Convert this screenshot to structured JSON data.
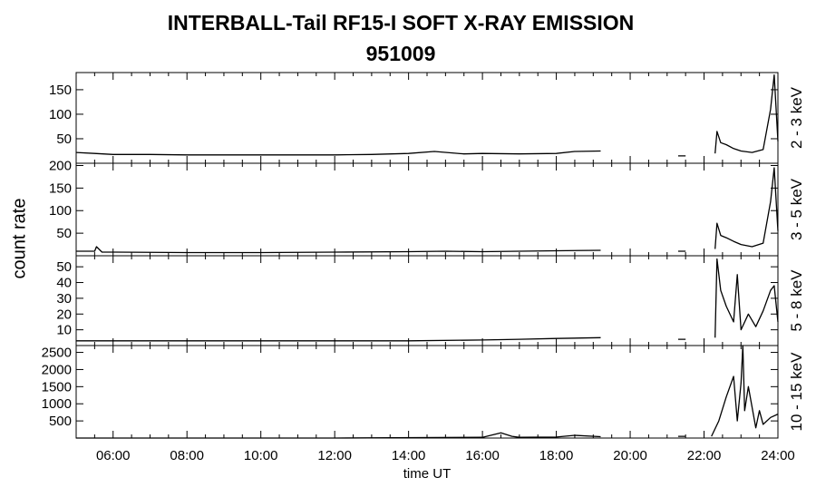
{
  "chart_data": {
    "type": "line",
    "title": "INTERBALL-Tail RF15-I SOFT X-RAY EMISSION",
    "subtitle": "951009",
    "xlabel": "time UT",
    "ylabel": "count rate",
    "xlim": [
      5.0,
      24.0
    ],
    "x_ticks": [
      {
        "value": 6,
        "label": "06:00"
      },
      {
        "value": 8,
        "label": "08:00"
      },
      {
        "value": 10,
        "label": "10:00"
      },
      {
        "value": 12,
        "label": "12:00"
      },
      {
        "value": 14,
        "label": "14:00"
      },
      {
        "value": 16,
        "label": "16:00"
      },
      {
        "value": 18,
        "label": "18:00"
      },
      {
        "value": 20,
        "label": "20:00"
      },
      {
        "value": 22,
        "label": "22:00"
      },
      {
        "value": 24,
        "label": "24:00"
      }
    ],
    "grid": false,
    "panels": [
      {
        "name": "2 - 3 keV",
        "ylim": [
          0,
          185
        ],
        "yticks": [
          50,
          100,
          150
        ],
        "series": {
          "x": [
            5.0,
            5.5,
            6.0,
            7.0,
            8.0,
            9.0,
            10.0,
            11.0,
            12.0,
            13.0,
            14.0,
            14.7,
            15.5,
            16.0,
            17.0,
            18.0,
            18.5,
            19.2,
            null,
            21.3,
            21.5,
            null,
            22.3,
            22.35,
            22.45,
            22.6,
            22.8,
            23.0,
            23.3,
            23.6,
            23.8,
            23.9,
            24.0
          ],
          "y": [
            22,
            20,
            18,
            18,
            17,
            17,
            17,
            17,
            17,
            18,
            20,
            24,
            19,
            20,
            19,
            20,
            24,
            25,
            null,
            15,
            15,
            null,
            20,
            65,
            42,
            38,
            30,
            25,
            22,
            28,
            110,
            180,
            45
          ]
        }
      },
      {
        "name": "3 - 5 keV",
        "ylim": [
          0,
          205
        ],
        "yticks": [
          50,
          100,
          150,
          200
        ],
        "series": {
          "x": [
            5.0,
            5.5,
            5.55,
            5.7,
            6.0,
            8.0,
            10.0,
            12.0,
            14.0,
            15.0,
            16.0,
            18.0,
            19.2,
            null,
            21.3,
            21.5,
            null,
            22.3,
            22.35,
            22.45,
            22.6,
            22.8,
            23.0,
            23.3,
            23.6,
            23.8,
            23.9,
            24.0
          ],
          "y": [
            10,
            10,
            20,
            8,
            8,
            7,
            7,
            8,
            9,
            10,
            9,
            11,
            12,
            null,
            10,
            10,
            null,
            15,
            72,
            45,
            40,
            32,
            25,
            20,
            28,
            120,
            195,
            55
          ]
        }
      },
      {
        "name": "5 - 8 keV",
        "ylim": [
          0,
          57
        ],
        "yticks": [
          10,
          20,
          30,
          40,
          50
        ],
        "series": {
          "x": [
            5.0,
            6.0,
            8.0,
            10.0,
            12.0,
            14.0,
            16.0,
            17.0,
            18.0,
            19.2,
            null,
            21.3,
            21.5,
            null,
            22.3,
            22.35,
            22.45,
            22.6,
            22.8,
            22.9,
            23.0,
            23.2,
            23.4,
            23.6,
            23.8,
            23.9,
            24.0
          ],
          "y": [
            3,
            3,
            3,
            3,
            3,
            3,
            3.5,
            4,
            4.5,
            5,
            null,
            4,
            4,
            null,
            5,
            55,
            35,
            25,
            15,
            45,
            10,
            20,
            12,
            22,
            35,
            38,
            15
          ]
        }
      },
      {
        "name": "10 - 15 keV",
        "ylim": [
          0,
          2700
        ],
        "yticks": [
          500,
          1000,
          1500,
          2000,
          2500
        ],
        "series": {
          "x": [
            5.0,
            8.0,
            12.0,
            16.0,
            16.5,
            16.8,
            17.0,
            18.0,
            18.5,
            19.2,
            null,
            21.3,
            21.5,
            null,
            22.2,
            22.4,
            22.6,
            22.8,
            22.9,
            23.0,
            23.05,
            23.1,
            23.2,
            23.4,
            23.5,
            23.6,
            23.8,
            24.0
          ],
          "y": [
            0,
            0,
            0,
            20,
            150,
            50,
            20,
            30,
            80,
            40,
            null,
            50,
            50,
            null,
            50,
            500,
            1200,
            1800,
            500,
            1600,
            2700,
            800,
            1500,
            300,
            800,
            400,
            600,
            700
          ]
        }
      }
    ]
  }
}
